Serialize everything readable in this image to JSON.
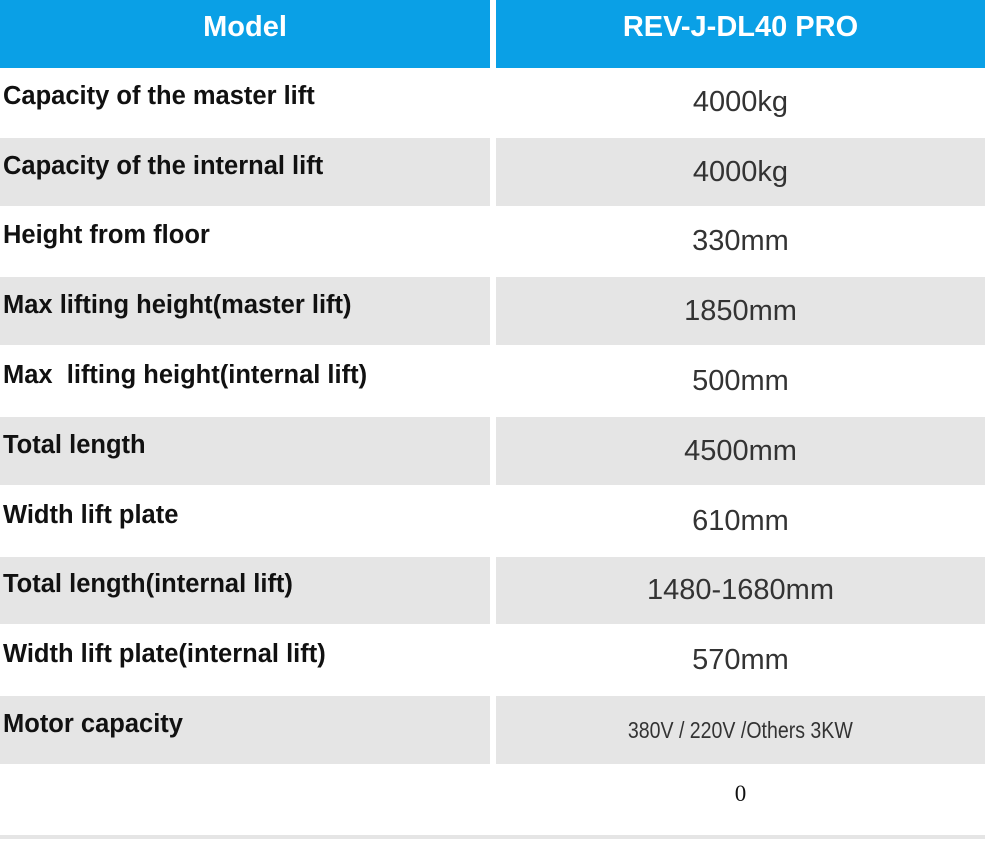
{
  "header": [
    "Model",
    "REV-J-DL40 PRO"
  ],
  "rows": [
    [
      "Capacity of the master lift",
      "4000kg"
    ],
    [
      "Capacity of the internal lift",
      "4000kg"
    ],
    [
      "Height from floor",
      "330mm"
    ],
    [
      "Max lifting height(master lift)",
      "1850mm"
    ],
    [
      "Max  lifting height(internal lift)",
      "500mm"
    ],
    [
      "Total length",
      "4500mm"
    ],
    [
      "Width lift plate",
      "610mm"
    ],
    [
      "Total length(internal lift)",
      "1480-1680mm"
    ],
    [
      "Width lift plate(internal lift)",
      "570mm"
    ],
    [
      "Motor capacity",
      "380V / 220V /Others 3KW"
    ],
    [
      null,
      0
    ]
  ]
}
